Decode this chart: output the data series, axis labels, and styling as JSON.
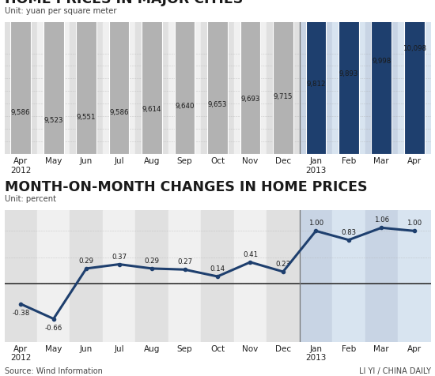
{
  "bar_labels": [
    "Apr\n2012",
    "May",
    "Jun",
    "Jul",
    "Aug",
    "Sep",
    "Oct",
    "Nov",
    "Dec",
    "Jan\n2013",
    "Feb",
    "Mar",
    "Apr"
  ],
  "bar_values": [
    9586,
    9523,
    9551,
    9586,
    9614,
    9640,
    9653,
    9693,
    9715,
    9812,
    9893,
    9998,
    10098
  ],
  "bar_colors_2012": "#b2b2b2",
  "bar_colors_2013": "#1e3f6e",
  "line_labels": [
    "Apr\n2012",
    "May",
    "Jun",
    "Jul",
    "Aug",
    "Sep",
    "Oct",
    "Nov",
    "Dec",
    "Jan\n2013",
    "Feb",
    "Mar",
    "Apr"
  ],
  "line_values": [
    -0.38,
    -0.66,
    0.29,
    0.37,
    0.29,
    0.27,
    0.14,
    0.41,
    0.23,
    1.0,
    0.83,
    1.06,
    1.0
  ],
  "bar_title": "HOME PRICES IN MAJOR CITIES",
  "bar_unit": "Unit: yuan per square meter",
  "line_title": "MONTH-ON-MONTH CHANGES IN HOME PRICES",
  "line_unit": "Unit: percent",
  "source_left": "Source: Wind Information",
  "source_right": "LI YI / CHINA DAILY",
  "divider_idx": 9,
  "bg_col_light": "#e0e0e0",
  "bg_col_white": "#f0f0f0",
  "bg_right_light": "#c8d4e4",
  "bg_right_white": "#d8e4f0",
  "bar_title_color": "#1a1a1a",
  "line_color": "#1e3f6e",
  "ylim_bar": [
    9300,
    10350
  ],
  "ylim_line": [
    -1.1,
    1.4
  ],
  "zero_line_y": -0.82
}
